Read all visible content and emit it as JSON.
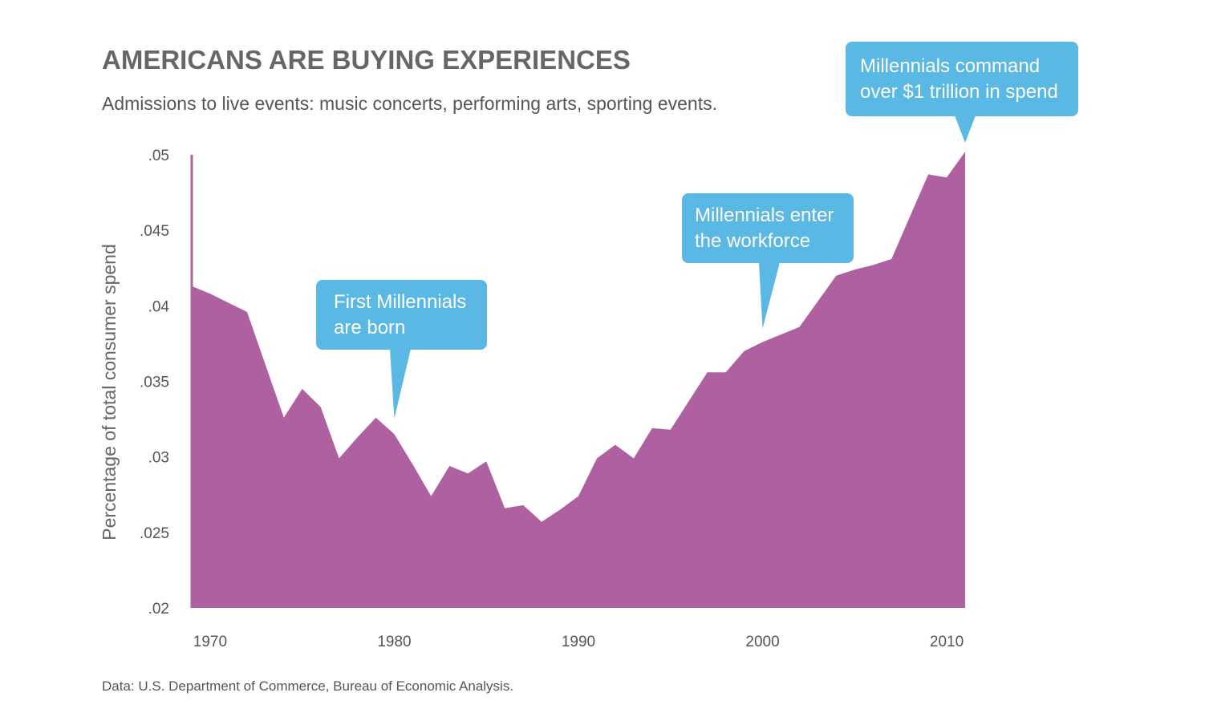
{
  "colors": {
    "area": "#ae60a1",
    "callout": "#5ab8e4",
    "text": "#555555"
  },
  "chart_data": {
    "type": "area",
    "title": "AMERICANS ARE BUYING EXPERIENCES",
    "subtitle": "Admissions to live events: music concerts, performing arts, sporting events.",
    "xlabel": "",
    "ylabel": "Percentage of total consumer spend",
    "source": "Data: U.S. Department of Commerce, Bureau of Economic Analysis.",
    "xlim": [
      1969,
      2011
    ],
    "ylim": [
      0.02,
      0.05
    ],
    "x_ticks": [
      {
        "value": 1970,
        "label": "1970"
      },
      {
        "value": 1980,
        "label": "1980"
      },
      {
        "value": 1990,
        "label": "1990"
      },
      {
        "value": 2000,
        "label": "2000"
      },
      {
        "value": 2010,
        "label": "2010"
      }
    ],
    "y_ticks": [
      {
        "value": 0.05,
        "label": ".05"
      },
      {
        "value": 0.045,
        "label": ".045"
      },
      {
        "value": 0.04,
        "label": ".04"
      },
      {
        "value": 0.035,
        "label": ".035"
      },
      {
        "value": 0.03,
        "label": ".03"
      },
      {
        "value": 0.025,
        "label": ".025"
      },
      {
        "value": 0.02,
        "label": ".02"
      }
    ],
    "series": [
      {
        "x": [
          1969,
          1970,
          1971,
          1972,
          1973,
          1974,
          1975,
          1976,
          1977,
          1978,
          1979,
          1980,
          1981,
          1982,
          1983,
          1984,
          1985,
          1986,
          1987,
          1988,
          1989,
          1990,
          1991,
          1992,
          1993,
          1994,
          1995,
          1996,
          1997,
          1998,
          1999,
          2000,
          2001,
          2002,
          2003,
          2004,
          2005,
          2006,
          2007,
          2008,
          2009,
          2010,
          2011
        ],
        "values": [
          0.0413,
          0.0408,
          0.0402,
          0.0396,
          0.0361,
          0.0326,
          0.0345,
          0.0333,
          0.0299,
          0.0313,
          0.0326,
          0.0315,
          0.0295,
          0.0274,
          0.0294,
          0.0289,
          0.0297,
          0.0266,
          0.0268,
          0.0257,
          0.0265,
          0.0274,
          0.0299,
          0.0308,
          0.0299,
          0.0319,
          0.0318,
          0.0337,
          0.0356,
          0.0356,
          0.037,
          0.0376,
          0.0381,
          0.0386,
          0.0403,
          0.042,
          0.0424,
          0.0427,
          0.0431,
          0.0459,
          0.0487,
          0.0485,
          0.0502
        ]
      }
    ],
    "annotations": [
      {
        "lines": [
          "First Millennials",
          "are born"
        ],
        "x": 1980
      },
      {
        "lines": [
          "Millennials enter",
          "the workforce"
        ],
        "x": 2000
      },
      {
        "lines": [
          "Millennials command",
          "over $1 trillion in spend"
        ],
        "x": 2011
      }
    ]
  }
}
